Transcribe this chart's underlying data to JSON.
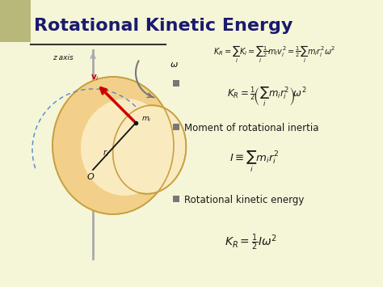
{
  "title": "Rotational Kinetic Energy",
  "bg_color": "#f5f5d8",
  "title_color": "#1a1a6e",
  "title_bg_color": "#b8b87a",
  "text_color": "#1a1a1a",
  "bullet_color": "#777777",
  "eq1": "$K_R = \\sum_i K_i = \\sum_i \\frac{1}{2} m_i v_i^2 = \\frac{1}{2} \\sum_i m_i r_i^2 \\omega^2$",
  "eq2": "$K_R = \\frac{1}{2}\\!\\left(\\sum_i m_i r_i^2\\right)\\!\\omega^2$",
  "bullet1": "Moment of rotational inertia",
  "eq3": "$I \\equiv \\sum_i m_i r_i^2$",
  "bullet2": "Rotational kinetic energy",
  "eq4": "$K_R = \\frac{1}{2} I\\omega^2$",
  "underline_color": "#333333",
  "diagram_colors": {
    "body_fill": "#f2d08a",
    "body_fill2": "#faeac0",
    "body_edge": "#c8a040",
    "axis_color": "#aaaaaa",
    "arrow_color": "#cc0000",
    "dashed_color": "#5588cc",
    "omega_arrow": "#777777",
    "label_color": "#111111"
  }
}
